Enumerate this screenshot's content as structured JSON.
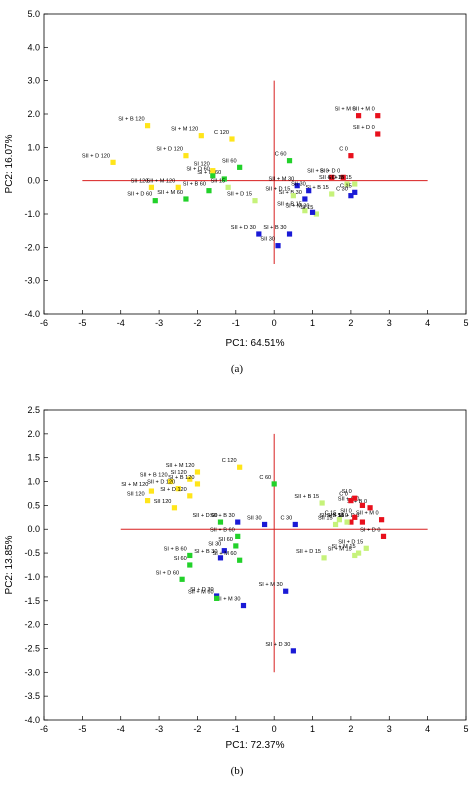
{
  "colors": {
    "red": "#e8101c",
    "blue": "#1a1ad6",
    "green": "#22d12a",
    "yellow": "#ffe51a",
    "lime": "#c6f27a",
    "axis_line": "#d81f1f",
    "frame": "#000000"
  },
  "chart_data": [
    {
      "type": "scatter",
      "panel_label": "(a)",
      "xlabel": "PC1: 64.51%",
      "ylabel": "PC2: 16.07%",
      "xlim": [
        -6,
        5
      ],
      "ylim": [
        -4,
        5
      ],
      "xticks": [
        "-6",
        "-5",
        "-4",
        "-3",
        "-2",
        "-1",
        "0",
        "1",
        "2",
        "3",
        "4",
        "5"
      ],
      "yticks": [
        "-4.0",
        "-3.0",
        "-2.0",
        "-1.0",
        "0.0",
        "1.0",
        "2.0",
        "3.0",
        "4.0",
        "5.0"
      ],
      "points": [
        {
          "x": 2.7,
          "y": 1.95,
          "label": "SII + M 0",
          "color": "red"
        },
        {
          "x": 2.2,
          "y": 1.95,
          "label": "SI + M 0",
          "color": "red"
        },
        {
          "x": 2.7,
          "y": 1.4,
          "label": "SII + D 0",
          "color": "red"
        },
        {
          "x": 2.0,
          "y": 0.75,
          "label": "C 0",
          "color": "red"
        },
        {
          "x": 1.5,
          "y": 0.1,
          "label": "SII + B 0",
          "color": "red"
        },
        {
          "x": 1.8,
          "y": 0.1,
          "label": "SI + D 0",
          "color": "red"
        },
        {
          "x": 1.9,
          "y": -0.1,
          "label": "SII + D 15",
          "color": "lime"
        },
        {
          "x": 2.1,
          "y": -0.1,
          "label": "SI + M 15",
          "color": "lime"
        },
        {
          "x": 2.1,
          "y": -0.35,
          "label": "C 15",
          "color": "blue"
        },
        {
          "x": 2.0,
          "y": -0.45,
          "label": "C 30",
          "color": "blue"
        },
        {
          "x": 1.5,
          "y": -0.4,
          "label": "SI + B 15",
          "color": "lime"
        },
        {
          "x": 0.6,
          "y": -0.15,
          "label": "SII + M 30",
          "color": "blue"
        },
        {
          "x": 0.9,
          "y": -0.3,
          "label": "SII 30",
          "color": "blue"
        },
        {
          "x": 0.8,
          "y": -0.55,
          "label": "SI + B 30",
          "color": "blue"
        },
        {
          "x": 0.4,
          "y": -1.6,
          "label": "SI + B 30",
          "color": "blue"
        },
        {
          "x": 0.1,
          "y": -1.95,
          "label": "SII 30",
          "color": "blue"
        },
        {
          "x": -0.4,
          "y": -1.6,
          "label": "SII + D 30",
          "color": "blue"
        },
        {
          "x": 0.5,
          "y": -0.45,
          "label": "SII + D 15",
          "color": "lime"
        },
        {
          "x": 0.8,
          "y": -0.9,
          "label": "SII + B 15",
          "color": "lime"
        },
        {
          "x": 1.1,
          "y": -1.0,
          "label": "SI 15",
          "color": "lime"
        },
        {
          "x": 1.0,
          "y": -0.95,
          "label": "SI + M 30",
          "color": "blue"
        },
        {
          "x": 0.4,
          "y": 0.6,
          "label": "C 60",
          "color": "green"
        },
        {
          "x": -0.9,
          "y": 0.4,
          "label": "SII 60",
          "color": "green"
        },
        {
          "x": -1.3,
          "y": 0.05,
          "label": "SI + M 60",
          "color": "green"
        },
        {
          "x": -1.6,
          "y": 0.15,
          "label": "SI + D 60",
          "color": "green"
        },
        {
          "x": -1.7,
          "y": -0.3,
          "label": "SI + B 60",
          "color": "green"
        },
        {
          "x": -2.3,
          "y": -0.55,
          "label": "SII + M 60",
          "color": "green"
        },
        {
          "x": -3.1,
          "y": -0.6,
          "label": "SII + D 60",
          "color": "green"
        },
        {
          "x": -2.5,
          "y": -0.2,
          "label": "SII + M 120",
          "color": "yellow"
        },
        {
          "x": -3.2,
          "y": -0.2,
          "label": "SII 120",
          "color": "yellow"
        },
        {
          "x": -1.1,
          "y": 1.25,
          "label": "C 120",
          "color": "yellow"
        },
        {
          "x": -1.9,
          "y": 1.35,
          "label": "SI + M 120",
          "color": "yellow"
        },
        {
          "x": -3.3,
          "y": 1.65,
          "label": "SI + B 120",
          "color": "yellow"
        },
        {
          "x": -2.3,
          "y": 0.75,
          "label": "SI + D 120",
          "color": "yellow"
        },
        {
          "x": -4.2,
          "y": 0.55,
          "label": "SII + D 120",
          "color": "yellow"
        },
        {
          "x": -1.6,
          "y": 0.3,
          "label": "SI 120",
          "color": "yellow"
        },
        {
          "x": -0.5,
          "y": -0.6,
          "label": "SII + D 15",
          "color": "lime"
        },
        {
          "x": -1.2,
          "y": -0.2,
          "label": "SII 15",
          "color": "lime"
        }
      ]
    },
    {
      "type": "scatter",
      "panel_label": "(b)",
      "xlabel": "PC1: 72.37%",
      "ylabel": "PC2: 13.85%",
      "xlim": [
        -6,
        5
      ],
      "ylim": [
        -4,
        2.5
      ],
      "xticks": [
        "-6",
        "-5",
        "-4",
        "-3",
        "-2",
        "-1",
        "0",
        "1",
        "2",
        "3",
        "4",
        "5"
      ],
      "yticks": [
        "-4.0",
        "-3.5",
        "-3.0",
        "-2.5",
        "-2.0",
        "-1.5",
        "-1.0",
        "-0.5",
        "0.0",
        "0.5",
        "1.0",
        "1.5",
        "2.0",
        "2.5"
      ],
      "points": [
        {
          "x": 2.5,
          "y": 0.45,
          "label": "SI + B 0",
          "color": "red"
        },
        {
          "x": 2.3,
          "y": 0.5,
          "label": "SII + B 0",
          "color": "red"
        },
        {
          "x": 2.1,
          "y": 0.65,
          "label": "SI 0",
          "color": "red"
        },
        {
          "x": 2.0,
          "y": 0.6,
          "label": "C 0",
          "color": "red"
        },
        {
          "x": 2.8,
          "y": 0.2,
          "label": "SII + M 0",
          "color": "red"
        },
        {
          "x": 2.85,
          "y": -0.15,
          "label": "SI + D 0",
          "color": "red"
        },
        {
          "x": 2.3,
          "y": 0.15,
          "label": "SII + D 0",
          "color": "red"
        },
        {
          "x": 2.0,
          "y": 0.15,
          "label": "SI + M 0",
          "color": "red"
        },
        {
          "x": 2.1,
          "y": 0.25,
          "label": "SII 0",
          "color": "red"
        },
        {
          "x": 1.7,
          "y": 0.2,
          "label": "C 15",
          "color": "lime"
        },
        {
          "x": 1.9,
          "y": 0.15,
          "label": "SII + B 15",
          "color": "lime"
        },
        {
          "x": 1.25,
          "y": 0.55,
          "label": "SII + B 15",
          "color": "lime"
        },
        {
          "x": 1.6,
          "y": 0.1,
          "label": "SII 15",
          "color": "lime"
        },
        {
          "x": 2.4,
          "y": -0.4,
          "label": "SII + D 15",
          "color": "lime"
        },
        {
          "x": 2.2,
          "y": -0.5,
          "label": "SI + M 15",
          "color": "lime"
        },
        {
          "x": 2.1,
          "y": -0.55,
          "label": "SI + M 15",
          "color": "lime"
        },
        {
          "x": 1.3,
          "y": -0.6,
          "label": "SII + D 15",
          "color": "lime"
        },
        {
          "x": 0.55,
          "y": 0.1,
          "label": "C 30",
          "color": "blue"
        },
        {
          "x": -0.25,
          "y": 0.1,
          "label": "SII 30",
          "color": "blue"
        },
        {
          "x": -0.95,
          "y": 0.15,
          "label": "SII + B 30",
          "color": "blue"
        },
        {
          "x": -1.3,
          "y": -0.45,
          "label": "SI 30",
          "color": "blue"
        },
        {
          "x": -1.4,
          "y": -0.6,
          "label": "SI + B 30",
          "color": "blue"
        },
        {
          "x": 0.3,
          "y": -1.3,
          "label": "SI + M 30",
          "color": "blue"
        },
        {
          "x": -0.8,
          "y": -1.6,
          "label": "SII + M 30",
          "color": "blue"
        },
        {
          "x": -1.5,
          "y": -1.4,
          "label": "SI + D 30",
          "color": "blue"
        },
        {
          "x": 0.5,
          "y": -2.55,
          "label": "SII + D 30",
          "color": "blue"
        },
        {
          "x": 0.0,
          "y": 0.95,
          "label": "C 60",
          "color": "green"
        },
        {
          "x": -1.0,
          "y": -0.35,
          "label": "SII 60",
          "color": "green"
        },
        {
          "x": -0.95,
          "y": -0.15,
          "label": "SII + B 60",
          "color": "green"
        },
        {
          "x": -0.9,
          "y": -0.65,
          "label": "SI + M 60",
          "color": "green"
        },
        {
          "x": -2.2,
          "y": -0.55,
          "label": "SI + B 60",
          "color": "green"
        },
        {
          "x": -2.2,
          "y": -0.75,
          "label": "SI 60",
          "color": "green"
        },
        {
          "x": -2.4,
          "y": -1.05,
          "label": "SI + D 60",
          "color": "green"
        },
        {
          "x": -1.5,
          "y": -1.45,
          "label": "SII + M 60",
          "color": "green"
        },
        {
          "x": -1.4,
          "y": 0.15,
          "label": "SII + D 60",
          "color": "green"
        },
        {
          "x": -0.9,
          "y": 1.3,
          "label": "C 120",
          "color": "yellow"
        },
        {
          "x": -2.0,
          "y": 1.2,
          "label": "SII + M 120",
          "color": "yellow"
        },
        {
          "x": -2.2,
          "y": 1.05,
          "label": "SI 120",
          "color": "yellow"
        },
        {
          "x": -2.0,
          "y": 0.95,
          "label": "SI + B 120",
          "color": "yellow"
        },
        {
          "x": -2.7,
          "y": 1.0,
          "label": "SII + B 120",
          "color": "yellow"
        },
        {
          "x": -2.5,
          "y": 0.85,
          "label": "SII + D 120",
          "color": "yellow"
        },
        {
          "x": -3.2,
          "y": 0.8,
          "label": "SI + M 120",
          "color": "yellow"
        },
        {
          "x": -2.2,
          "y": 0.7,
          "label": "SI + D 120",
          "color": "yellow"
        },
        {
          "x": -3.3,
          "y": 0.6,
          "label": "SII 120",
          "color": "yellow"
        },
        {
          "x": -2.6,
          "y": 0.45,
          "label": "SII 120",
          "color": "yellow"
        }
      ]
    }
  ]
}
